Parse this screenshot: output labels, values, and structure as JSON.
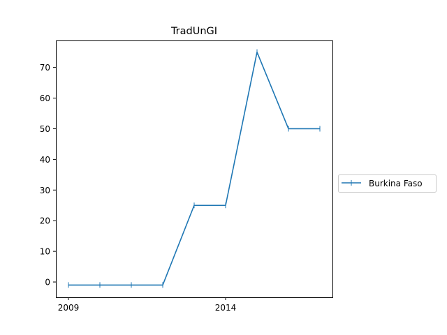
{
  "chart_data": {
    "type": "line",
    "title": "TradUnGI",
    "xlabel": "",
    "ylabel": "",
    "x": [
      2009,
      2010,
      2011,
      2012,
      2013,
      2014,
      2015,
      2016,
      2017
    ],
    "series": [
      {
        "name": "Burkina Faso",
        "color": "#1f77b4",
        "marker": "vline",
        "values": [
          -1,
          -1,
          -1,
          -1,
          25,
          25,
          75,
          50,
          50
        ]
      }
    ],
    "xlim": [
      2008.6,
      2017.4
    ],
    "ylim": [
      -5,
      78.8
    ],
    "xticks": [
      2009,
      2014
    ],
    "yticks": [
      0,
      10,
      20,
      30,
      40,
      50,
      60,
      70
    ],
    "legend_position": "right-outside",
    "grid": false
  }
}
